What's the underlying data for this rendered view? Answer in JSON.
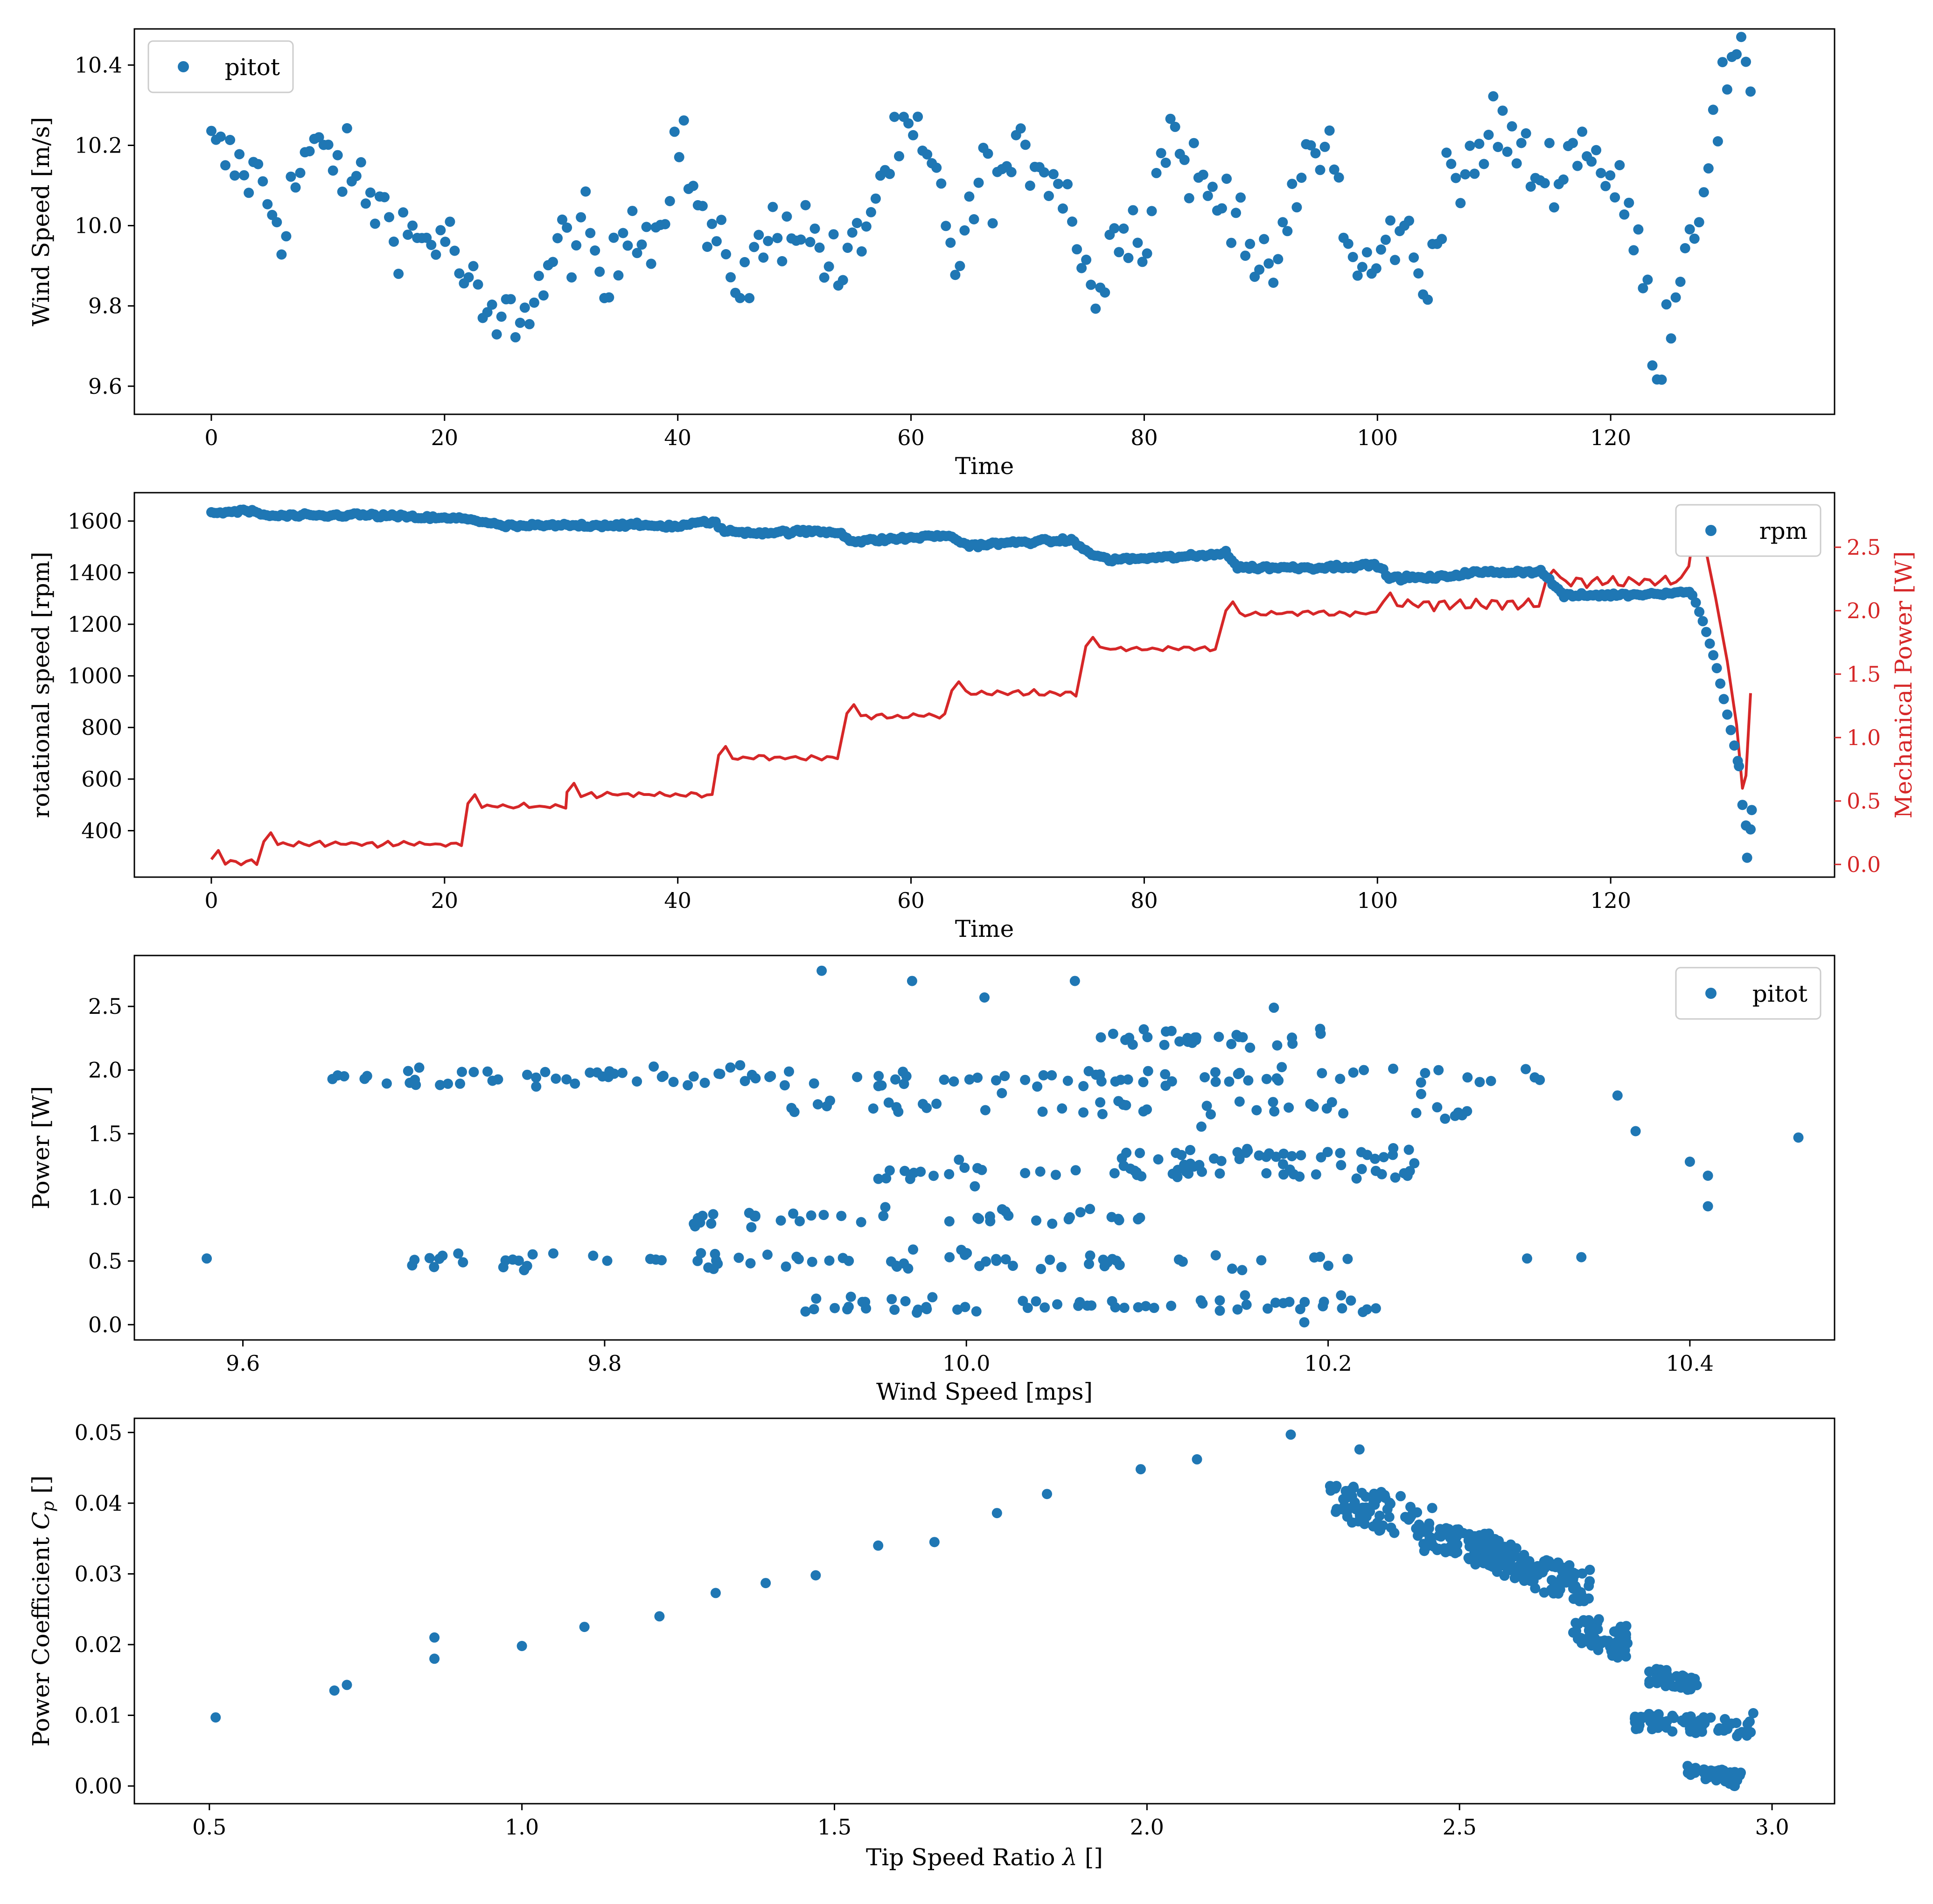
{
  "colors": {
    "series": "#1f77b4",
    "power": "#d62728",
    "axes": "#000000"
  },
  "chart_data": [
    {
      "type": "scatter",
      "xlabel": "Time",
      "ylabel": "Wind Speed [m/s]",
      "xlim": [
        -6.6,
        139.2
      ],
      "ylim": [
        9.53,
        10.49
      ],
      "xticks": [
        "0",
        "20",
        "40",
        "60",
        "80",
        "100",
        "120"
      ],
      "yticks": [
        "9.6",
        "9.8",
        "10.0",
        "10.2",
        "10.4"
      ],
      "legend": {
        "label": "pitot",
        "placement": "top-left"
      },
      "trend": {
        "t": [
          0,
          2,
          4,
          6,
          8,
          10,
          12,
          14,
          16,
          18,
          20,
          22,
          24,
          26,
          28,
          30,
          32,
          34,
          36,
          38,
          40,
          42,
          44,
          46,
          48,
          50,
          52,
          54,
          56,
          58,
          60,
          62,
          64,
          66,
          68,
          70,
          72,
          74,
          76,
          78,
          80,
          82,
          84,
          86,
          88,
          90,
          92,
          94,
          96,
          98,
          100,
          102,
          104,
          106,
          108,
          110,
          112,
          114,
          116,
          118,
          120,
          122,
          124,
          126,
          128,
          130,
          132
        ],
        "v": [
          10.19,
          10.15,
          10.12,
          10.0,
          10.17,
          10.18,
          10.13,
          10.06,
          10.0,
          9.96,
          9.98,
          9.85,
          9.74,
          9.78,
          9.83,
          9.95,
          9.99,
          9.82,
          10.05,
          9.95,
          10.24,
          10.02,
          9.9,
          9.87,
          9.98,
          10.02,
          9.96,
          9.86,
          10.0,
          10.16,
          10.22,
          10.12,
          9.9,
          10.12,
          10.12,
          10.18,
          10.15,
          10.02,
          9.8,
          10.05,
          9.95,
          10.25,
          10.14,
          10.06,
          10.08,
          9.84,
          9.95,
          10.18,
          10.2,
          9.88,
          9.9,
          10.02,
          9.82,
          10.15,
          10.1,
          10.27,
          10.18,
          10.12,
          10.16,
          10.22,
          10.1,
          10.0,
          9.65,
          9.9,
          10.12,
          10.37,
          10.39
        ],
        "noise": 0.045,
        "points": 330,
        "tmin": 0,
        "tmax": 132
      }
    },
    {
      "type": "line",
      "xlabel": "Time",
      "ylabel": "rotational speed [rpm]",
      "ylabel_right": "Mechanical Power [W]",
      "xlim": [
        -6.6,
        139.2
      ],
      "ylim": [
        220,
        1710
      ],
      "ylim_right": [
        -0.1,
        2.93
      ],
      "xticks": [
        "0",
        "20",
        "40",
        "60",
        "80",
        "100",
        "120"
      ],
      "yticks": [
        "400",
        "600",
        "800",
        "1000",
        "1200",
        "1400",
        "1600"
      ],
      "yticks_right": [
        "0.0",
        "0.5",
        "1.0",
        "1.5",
        "2.0",
        "2.5"
      ],
      "legend": {
        "label": "rpm",
        "placement": "top-right"
      },
      "series": [
        {
          "name": "rpm",
          "t": [
            0,
            3,
            5,
            10,
            12,
            20,
            22,
            25,
            35,
            40,
            43,
            44,
            47,
            52,
            54,
            55,
            60,
            63,
            65,
            70,
            74,
            75,
            77,
            85,
            87,
            88,
            95,
            100,
            101,
            105,
            108,
            114,
            115,
            116,
            122,
            126,
            127,
            128,
            129,
            130,
            131,
            132
          ],
          "v": [
            1630,
            1640,
            1620,
            1620,
            1625,
            1610,
            1610,
            1580,
            1585,
            1580,
            1600,
            1560,
            1555,
            1560,
            1555,
            1520,
            1535,
            1545,
            1505,
            1520,
            1525,
            1480,
            1450,
            1465,
            1480,
            1420,
            1420,
            1430,
            1380,
            1380,
            1400,
            1405,
            1360,
            1310,
            1315,
            1325,
            1320,
            1200,
            1050,
            850,
            650,
            420
          ],
          "tail": [
            [
              131,
              650
            ],
            [
              131.3,
              500
            ],
            [
              131.6,
              420
            ],
            [
              132,
              405
            ],
            [
              132.1,
              480
            ],
            [
              131.7,
              295
            ]
          ]
        },
        {
          "name": "Mechanical Power",
          "steps": [
            [
              0,
              4,
              0.02
            ],
            [
              4.5,
              21.5,
              0.16
            ],
            [
              22,
              30.5,
              0.46
            ],
            [
              30.5,
              43,
              0.55
            ],
            [
              43.5,
              54,
              0.84
            ],
            [
              54.5,
              63,
              1.17
            ],
            [
              63.5,
              74.5,
              1.35
            ],
            [
              75,
              86.5,
              1.7
            ],
            [
              87,
              100,
              1.98
            ],
            [
              100.5,
              114,
              2.05
            ],
            [
              114.5,
              126.5,
              2.23
            ]
          ],
          "peak": [
            [
              126.7,
              2.35
            ],
            [
              127.3,
              2.73
            ],
            [
              128,
              2.55
            ],
            [
              129,
              2.1
            ],
            [
              130,
              1.6
            ],
            [
              130.8,
              1.1
            ],
            [
              131.3,
              0.6
            ],
            [
              131.6,
              0.7
            ],
            [
              132,
              1.35
            ]
          ]
        }
      ]
    },
    {
      "type": "scatter",
      "xlabel": "Wind Speed [mps]",
      "ylabel": "Power [W]",
      "xlim": [
        9.54,
        10.48
      ],
      "ylim": [
        -0.12,
        2.9
      ],
      "xticks": [
        "9.6",
        "9.8",
        "10.0",
        "10.2",
        "10.4"
      ],
      "yticks": [
        "0.0",
        "0.5",
        "1.0",
        "1.5",
        "2.0",
        "2.5"
      ],
      "legend": {
        "label": "pitot",
        "placement": "top-right"
      },
      "bands": [
        {
          "y": 0.15,
          "xmin": 9.9,
          "xmax": 10.23,
          "count": 60
        },
        {
          "y": 0.5,
          "xmin": 9.69,
          "xmax": 10.23,
          "count": 75
        },
        {
          "y": 0.84,
          "xmin": 9.84,
          "xmax": 10.1,
          "count": 40
        },
        {
          "y": 1.2,
          "xmin": 9.95,
          "xmax": 10.25,
          "count": 50
        },
        {
          "y": 1.33,
          "xmin": 10.07,
          "xmax": 10.25,
          "count": 35
        },
        {
          "y": 1.7,
          "xmin": 9.9,
          "xmax": 10.29,
          "count": 45
        },
        {
          "y": 1.95,
          "xmin": 9.63,
          "xmax": 10.32,
          "count": 110
        },
        {
          "y": 2.25,
          "xmin": 10.07,
          "xmax": 10.2,
          "count": 30
        }
      ],
      "extra_points": [
        [
          9.58,
          0.52
        ],
        [
          9.92,
          2.78
        ],
        [
          9.97,
          2.7
        ],
        [
          10.01,
          2.57
        ],
        [
          10.06,
          2.7
        ],
        [
          10.17,
          2.49
        ],
        [
          10.46,
          1.47
        ],
        [
          10.4,
          1.28
        ],
        [
          10.41,
          1.17
        ],
        [
          10.41,
          0.93
        ],
        [
          10.36,
          1.8
        ],
        [
          10.37,
          1.52
        ],
        [
          10.34,
          0.53
        ],
        [
          10.31,
          0.52
        ]
      ]
    },
    {
      "type": "scatter",
      "xlabel": "Tip Speed Ratio λ []",
      "ylabel": "Power Coefficient Cp []",
      "xlim": [
        0.38,
        3.1
      ],
      "ylim": [
        -0.0025,
        0.052
      ],
      "xticks": [
        "0.5",
        "1.0",
        "1.5",
        "2.0",
        "2.5",
        "3.0"
      ],
      "yticks": [
        "0.00",
        "0.01",
        "0.02",
        "0.03",
        "0.04",
        "0.05"
      ],
      "points": [
        [
          0.51,
          0.0097
        ],
        [
          0.7,
          0.0135
        ],
        [
          0.72,
          0.0143
        ],
        [
          0.86,
          0.018
        ],
        [
          0.86,
          0.021
        ],
        [
          1.0,
          0.0198
        ],
        [
          1.1,
          0.0225
        ],
        [
          1.22,
          0.024
        ],
        [
          1.31,
          0.0273
        ],
        [
          1.39,
          0.0287
        ],
        [
          1.47,
          0.0298
        ],
        [
          1.57,
          0.034
        ],
        [
          1.66,
          0.0345
        ],
        [
          1.76,
          0.0386
        ],
        [
          1.84,
          0.0413
        ],
        [
          1.99,
          0.0448
        ],
        [
          2.08,
          0.0462
        ],
        [
          2.23,
          0.0497
        ],
        [
          2.34,
          0.0476
        ],
        [
          2.97,
          0.0103
        ]
      ],
      "clusters": [
        {
          "xmin": 2.29,
          "xmax": 2.46,
          "ymin": 0.035,
          "ymax": 0.043,
          "count": 70
        },
        {
          "xmin": 2.44,
          "xmax": 2.57,
          "ymin": 0.031,
          "ymax": 0.038,
          "count": 70
        },
        {
          "xmin": 2.51,
          "xmax": 2.62,
          "ymin": 0.029,
          "ymax": 0.036,
          "count": 60
        },
        {
          "xmin": 2.6,
          "xmax": 2.71,
          "ymin": 0.026,
          "ymax": 0.033,
          "count": 55
        },
        {
          "xmin": 2.68,
          "xmax": 2.77,
          "ymin": 0.018,
          "ymax": 0.025,
          "count": 55
        },
        {
          "xmin": 2.8,
          "xmax": 2.88,
          "ymin": 0.0135,
          "ymax": 0.017,
          "count": 40
        },
        {
          "xmin": 2.78,
          "xmax": 2.97,
          "ymin": 0.007,
          "ymax": 0.0105,
          "count": 60
        },
        {
          "xmin": 2.86,
          "xmax": 2.95,
          "ymin": 0.0,
          "ymax": 0.003,
          "count": 40
        }
      ]
    }
  ]
}
